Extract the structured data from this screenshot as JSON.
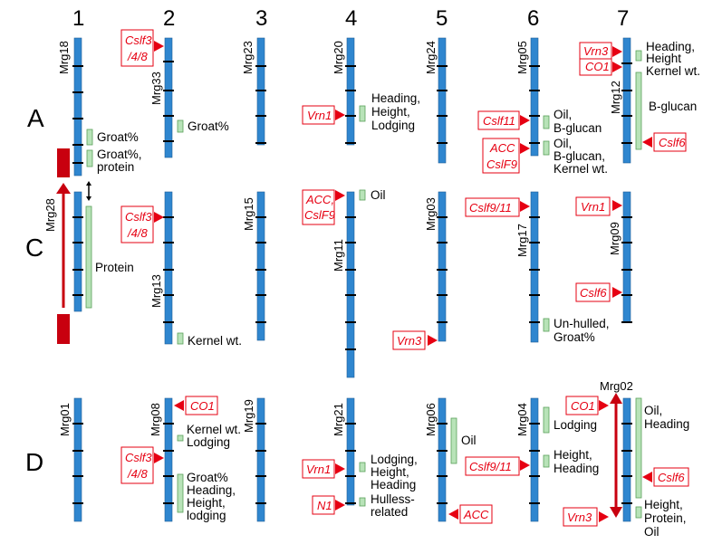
{
  "columns": [
    "1",
    "2",
    "3",
    "4",
    "5",
    "6",
    "7"
  ],
  "groups": [
    "A",
    "C",
    "D"
  ],
  "chromosomes": {
    "Mrg18": "Mrg18",
    "Mrg33": "Mrg33",
    "Mrg23": "Mrg23",
    "Mrg20": "Mrg20",
    "Mrg24": "Mrg24",
    "Mrg05": "Mrg05",
    "Mrg12": "Mrg12",
    "Mrg28": "Mrg28",
    "Mrg13": "Mrg13",
    "Mrg15": "Mrg15",
    "Mrg11": "Mrg11",
    "Mrg03": "Mrg03",
    "Mrg17": "Mrg17",
    "Mrg09": "Mrg09",
    "Mrg01": "Mrg01",
    "Mrg08": "Mrg08",
    "Mrg19": "Mrg19",
    "Mrg21": "Mrg21",
    "Mrg06": "Mrg06",
    "Mrg04": "Mrg04",
    "Mrg02": "Mrg02"
  },
  "genes": {
    "cslf3_line1": "Cslf3",
    "cslf3_line2": "/4/8",
    "vrn1": "Vrn1",
    "vrn3": "Vrn3",
    "co1": "CO1",
    "cslf6": "Cslf6",
    "cslf11": "Cslf11",
    "acc": "ACC",
    "cslf9": "CslF9",
    "acc_comma": "ACC,",
    "cslf9_11": "Cslf9/11",
    "n1": "N1"
  },
  "traits": {
    "groat": "Groat%",
    "groat_protein_1": "Groat%,",
    "groat_protein_2": "protein",
    "heading_height_lodging_1": "Heading,",
    "heading_height_lodging_2": "Height,",
    "heading_height_lodging_3": "Lodging",
    "oil_bglucan_1": "Oil,",
    "oil_bglucan_2": "B-glucan",
    "oil_bglucan_kernel_1": "Oil,",
    "oil_bglucan_kernel_2": "B-glucan,",
    "oil_bglucan_kernel_3": "Kernel wt.",
    "heading_height_1": "Heading,",
    "heading_height_2": "Height",
    "kernel_wt": "Kernel wt.",
    "bglucan": "B-glucan",
    "protein": "Protein",
    "oil": "Oil",
    "unhulled_1": "Un-hulled,",
    "unhulled_2": "Groat%",
    "kernel_lodging_1": "Kernel wt.",
    "kernel_lodging_2": "Lodging",
    "groat_heading_1": "Groat%",
    "groat_heading_2": "Heading,",
    "groat_heading_3": "Height,",
    "groat_heading_4": "lodging",
    "lodging_height_heading_1": "Lodging,",
    "lodging_height_heading_2": "Height,",
    "lodging_height_heading_3": "Heading",
    "hulless_1": "Hulless-",
    "hulless_2": "related",
    "lodging": "Lodging",
    "height_heading_1": "Height,",
    "height_heading_2": "Heading",
    "oil_heading_1": "Oil,",
    "oil_heading_2": "Heading",
    "height_protein_oil_1": "Height,",
    "height_protein_oil_2": "Protein,",
    "height_protein_oil_3": "Oil"
  },
  "colors": {
    "chromosome": "#2f86cf",
    "gene": "#e60012",
    "qtl": "#b8e3b8"
  }
}
